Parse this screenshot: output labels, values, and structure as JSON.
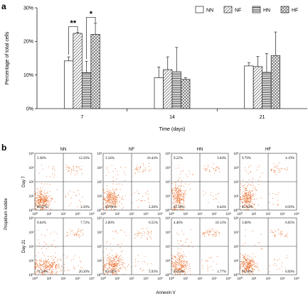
{
  "panel_a_label": "a",
  "panel_b_label": "b",
  "chart_data": [
    {
      "type": "bar",
      "categories": [
        "7",
        "14",
        "21"
      ],
      "xlabel": "Time (days)",
      "ylabel": "Percentage of total cells",
      "ylim": [
        0,
        30
      ],
      "yticks": [
        "0%",
        "10%",
        "20%",
        "30%"
      ],
      "legend": "top-right",
      "series": [
        {
          "name": "NN",
          "values": [
            14.2,
            9.2,
            12.7
          ],
          "errors": [
            1.2,
            3.2,
            1.0
          ],
          "pattern": "solid-white"
        },
        {
          "name": "NF",
          "values": [
            22.4,
            11.6,
            12.5
          ],
          "errors": [
            0.3,
            3.8,
            3.0
          ],
          "pattern": "diagonal"
        },
        {
          "name": "HN",
          "values": [
            10.7,
            11.0,
            10.8
          ],
          "errors": [
            3.4,
            7.2,
            5.6
          ],
          "pattern": "horizontal"
        },
        {
          "name": "HF",
          "values": [
            22.1,
            8.7,
            15.8
          ],
          "errors": [
            3.4,
            0.5,
            7.0
          ],
          "pattern": "crosshatch"
        }
      ],
      "significance": [
        {
          "label": "**",
          "category": "7",
          "between": [
            "NN",
            "NF"
          ]
        },
        {
          "label": "*",
          "category": "7",
          "between": [
            "HN",
            "HF"
          ]
        }
      ]
    },
    {
      "type": "scatter",
      "title": "Flow cytometry quadrant plots",
      "columns": [
        "NN",
        "NF",
        "HN",
        "HF"
      ],
      "rows": [
        "Day 7",
        "Day 21"
      ],
      "xlabel": "Annexin V",
      "ylabel": "Propidium iodide",
      "axis_ticks": [
        "10⁰",
        "10¹",
        "10²",
        "10³",
        "10⁴"
      ],
      "point_color": "#e8641e",
      "quadrants": [
        {
          "row": "Day 7",
          "col": "NN",
          "ul": "3.38%",
          "ur": "12.56%",
          "ll": "80.67%",
          "lr": "3.39%"
        },
        {
          "row": "Day 7",
          "col": "NF",
          "ul": "3.34%",
          "ur": "10.44%",
          "ll": "83.94%",
          "lr": "2.28%"
        },
        {
          "row": "Day 7",
          "col": "HN",
          "ul": "9.22%",
          "ur": "3.04%",
          "ll": "87.30%",
          "lr": "0.44%"
        },
        {
          "row": "Day 7",
          "col": "HF",
          "ul": "9.79%",
          "ur": "4.19%",
          "ll": "85.63%",
          "lr": "0.39%"
        },
        {
          "row": "Day 21",
          "col": "NN",
          "ul": "0.64%",
          "ur": "7.72%",
          "ll": "71.44%",
          "lr": "20.20%"
        },
        {
          "row": "Day 21",
          "col": "NF",
          "ul": "2.00%",
          "ur": "6.55%",
          "ll": "85.52%",
          "lr": "5.93%"
        },
        {
          "row": "Day 21",
          "col": "HN",
          "ul": "4.46%",
          "ur": "10.13%",
          "ll": "83.64%",
          "lr": "1.77%"
        },
        {
          "row": "Day 21",
          "col": "HF",
          "ul": "3.60%",
          "ur": "6.05%",
          "ll": "91.92%",
          "lr": "0.69%"
        }
      ]
    }
  ]
}
